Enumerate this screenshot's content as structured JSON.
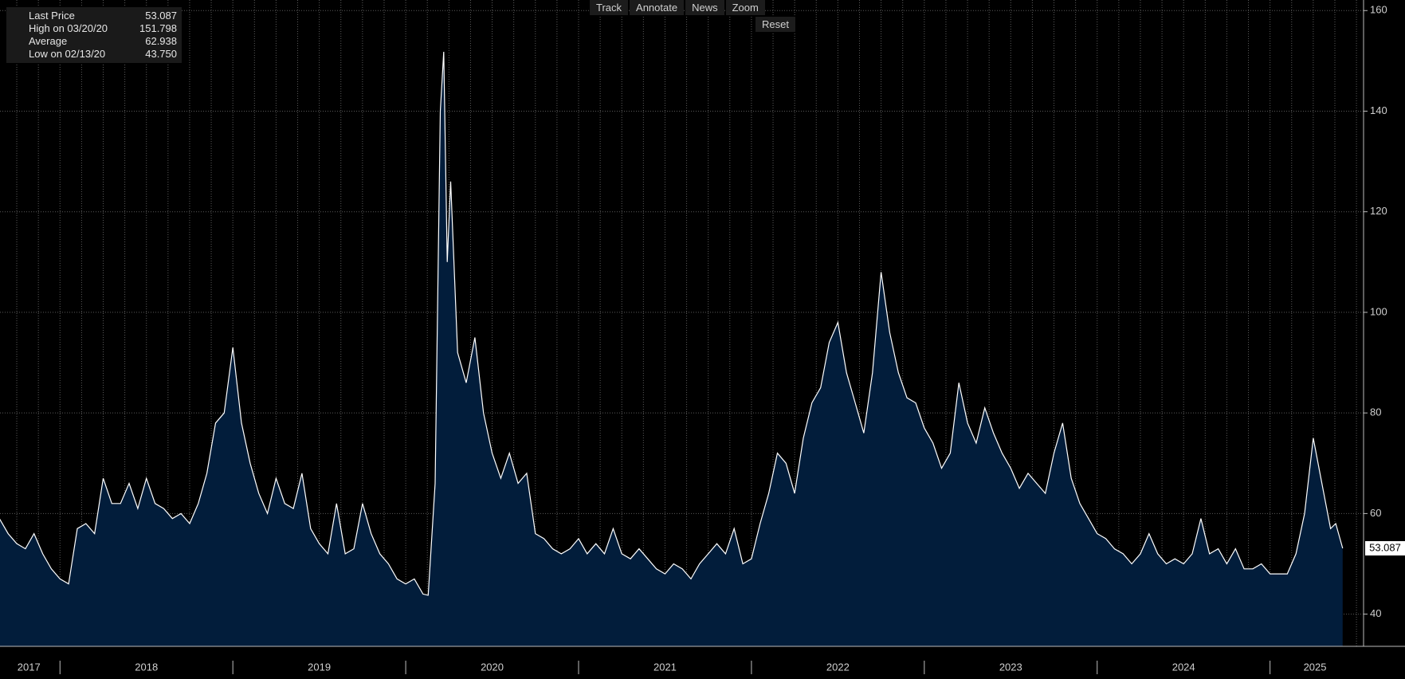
{
  "chart_data": {
    "type": "area",
    "toolbar": [
      "Track",
      "Annotate",
      "News",
      "Zoom",
      "Reset"
    ],
    "stats": [
      {
        "label": "Last Price",
        "value": "53.087"
      },
      {
        "label": "High on 03/20/20",
        "value": "151.798"
      },
      {
        "label": "Average",
        "value": "62.938"
      },
      {
        "label": "Low on 02/13/20",
        "value": "43.750"
      }
    ],
    "color": "#021d3b",
    "line_color": "#ffffff",
    "x": [
      2017.65,
      2017.7,
      2017.75,
      2017.8,
      2017.85,
      2017.9,
      2017.95,
      2018.0,
      2018.05,
      2018.1,
      2018.15,
      2018.2,
      2018.25,
      2018.3,
      2018.35,
      2018.4,
      2018.45,
      2018.5,
      2018.55,
      2018.6,
      2018.65,
      2018.7,
      2018.75,
      2018.8,
      2018.85,
      2018.9,
      2018.95,
      2019.0,
      2019.05,
      2019.1,
      2019.15,
      2019.2,
      2019.25,
      2019.3,
      2019.35,
      2019.4,
      2019.45,
      2019.5,
      2019.55,
      2019.6,
      2019.65,
      2019.7,
      2019.75,
      2019.8,
      2019.85,
      2019.9,
      2019.95,
      2020.0,
      2020.05,
      2020.1,
      2020.13,
      2020.17,
      2020.2,
      2020.22,
      2020.24,
      2020.26,
      2020.3,
      2020.35,
      2020.4,
      2020.45,
      2020.5,
      2020.55,
      2020.6,
      2020.65,
      2020.7,
      2020.75,
      2020.8,
      2020.85,
      2020.9,
      2020.95,
      2021.0,
      2021.05,
      2021.1,
      2021.15,
      2021.2,
      2021.25,
      2021.3,
      2021.35,
      2021.4,
      2021.45,
      2021.5,
      2021.55,
      2021.6,
      2021.65,
      2021.7,
      2021.75,
      2021.8,
      2021.85,
      2021.9,
      2021.95,
      2022.0,
      2022.05,
      2022.1,
      2022.15,
      2022.2,
      2022.25,
      2022.3,
      2022.35,
      2022.4,
      2022.45,
      2022.5,
      2022.55,
      2022.6,
      2022.65,
      2022.7,
      2022.75,
      2022.8,
      2022.85,
      2022.9,
      2022.95,
      2023.0,
      2023.05,
      2023.1,
      2023.15,
      2023.2,
      2023.25,
      2023.3,
      2023.35,
      2023.4,
      2023.45,
      2023.5,
      2023.55,
      2023.6,
      2023.65,
      2023.7,
      2023.75,
      2023.8,
      2023.85,
      2023.9,
      2023.95,
      2024.0,
      2024.05,
      2024.1,
      2024.15,
      2024.2,
      2024.25,
      2024.3,
      2024.35,
      2024.4,
      2024.45,
      2024.5,
      2024.55,
      2024.6,
      2024.65,
      2024.7,
      2024.75,
      2024.8,
      2024.85,
      2024.9,
      2024.95,
      2025.0,
      2025.05,
      2025.1,
      2025.15,
      2025.2,
      2025.25,
      2025.3,
      2025.35,
      2025.38,
      2025.42
    ],
    "values": [
      59,
      56,
      54,
      53,
      56,
      52,
      49,
      47,
      46,
      57,
      58,
      56,
      67,
      62,
      62,
      66,
      61,
      67,
      62,
      61,
      59,
      60,
      58,
      62,
      68,
      78,
      80,
      93,
      78,
      70,
      64,
      60,
      67,
      62,
      61,
      68,
      57,
      54,
      52,
      62,
      52,
      53,
      62,
      56,
      52,
      50,
      47,
      46,
      47,
      44,
      43.75,
      66,
      140,
      151.798,
      110,
      126,
      92,
      86,
      95,
      80,
      72,
      67,
      72,
      66,
      68,
      56,
      55,
      53,
      52,
      53,
      55,
      52,
      54,
      52,
      57,
      52,
      51,
      53,
      51,
      49,
      48,
      50,
      49,
      47,
      50,
      52,
      54,
      52,
      57,
      50,
      51,
      58,
      64,
      72,
      70,
      64,
      75,
      82,
      85,
      94,
      98,
      88,
      82,
      76,
      88,
      108,
      96,
      88,
      83,
      82,
      77,
      74,
      69,
      72,
      86,
      78,
      74,
      81,
      76,
      72,
      69,
      65,
      68,
      66,
      64,
      72,
      78,
      67,
      62,
      59,
      56,
      55,
      53,
      52,
      50,
      52,
      56,
      52,
      50,
      51,
      50,
      52,
      59,
      52,
      53,
      50,
      53,
      49,
      49,
      50,
      48,
      48,
      48,
      52,
      60,
      75,
      66,
      57,
      58,
      53.087
    ],
    "xlim": [
      2017.653,
      2025.541
    ],
    "xticks": [
      {
        "value": 2017.82,
        "label": "2017"
      },
      {
        "value": 2018.5,
        "label": "2018"
      },
      {
        "value": 2019.5,
        "label": "2019"
      },
      {
        "value": 2020.5,
        "label": "2020"
      },
      {
        "value": 2021.5,
        "label": "2021"
      },
      {
        "value": 2022.5,
        "label": "2022"
      },
      {
        "value": 2023.5,
        "label": "2023"
      },
      {
        "value": 2024.5,
        "label": "2024"
      },
      {
        "value": 2025.26,
        "label": "2025"
      }
    ],
    "xdividers": [
      2018,
      2019,
      2020,
      2021,
      2022,
      2023,
      2024,
      2025
    ],
    "xgrid": [
      2017.75,
      2017.875,
      2018,
      2018.125,
      2018.25,
      2018.375,
      2018.5,
      2018.625,
      2018.75,
      2018.875,
      2019,
      2019.125,
      2019.25,
      2019.375,
      2019.5,
      2019.625,
      2019.75,
      2019.875,
      2020,
      2020.125,
      2020.25,
      2020.375,
      2020.5,
      2020.625,
      2020.75,
      2020.875,
      2021,
      2021.125,
      2021.25,
      2021.375,
      2021.5,
      2021.625,
      2021.75,
      2021.875,
      2022,
      2022.125,
      2022.25,
      2022.375,
      2022.5,
      2022.625,
      2022.75,
      2022.875,
      2023,
      2023.125,
      2023.25,
      2023.375,
      2023.5,
      2023.625,
      2023.75,
      2023.875,
      2024,
      2024.125,
      2024.25,
      2024.375,
      2024.5,
      2024.625,
      2024.75,
      2024.875,
      2025,
      2025.125,
      2025.25,
      2025.375,
      2025.5
    ],
    "ylim": [
      33.6,
      162.1
    ],
    "yticks": [
      40,
      60,
      80,
      100,
      120,
      140,
      160
    ],
    "grid": true
  }
}
